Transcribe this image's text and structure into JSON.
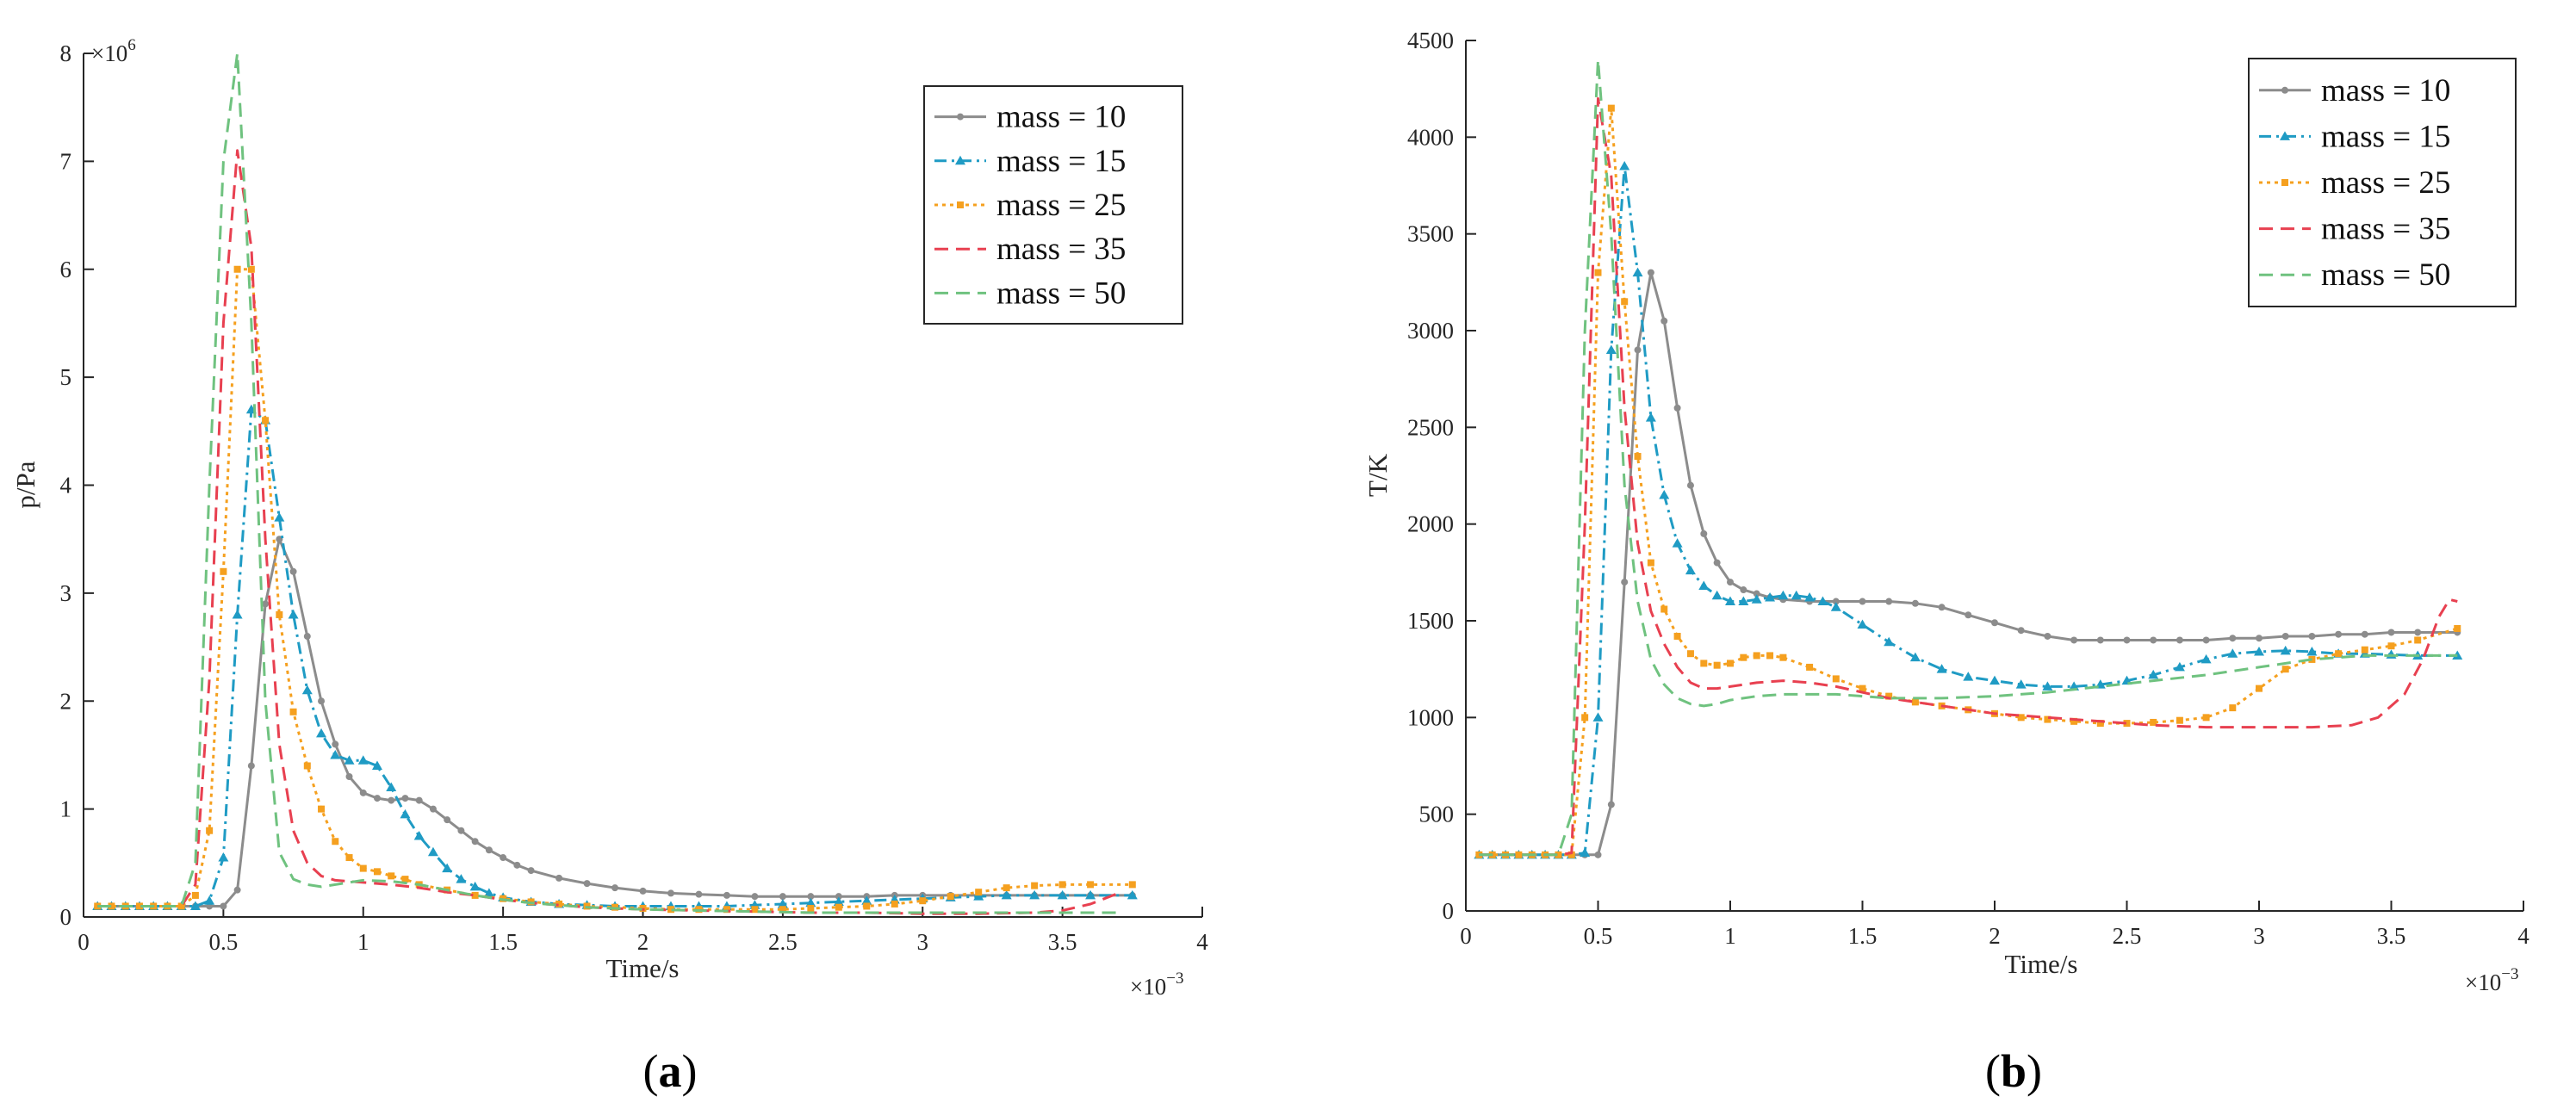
{
  "chart_data": [
    {
      "type": "line",
      "panel_label": {
        "open": "(",
        "letter": "a",
        "close": ")"
      },
      "title": "",
      "xlabel": "Time/s",
      "ylabel": "p/Pa",
      "x_multiplier": {
        "base": "×10",
        "exp": "−3"
      },
      "y_multiplier": {
        "base": "×10",
        "exp": "6"
      },
      "xlim": [
        0,
        4
      ],
      "ylim": [
        0,
        8
      ],
      "x_ticks": [
        "0",
        "0.5",
        "1",
        "1.5",
        "2",
        "2.5",
        "3",
        "3.5",
        "4"
      ],
      "y_ticks": [
        "0",
        "1",
        "2",
        "3",
        "4",
        "5",
        "6",
        "7",
        "8"
      ],
      "legend_position": "top-right",
      "series": [
        {
          "name": "mass = 10",
          "color": "#8c8c8c",
          "dash": "solid",
          "marker": "circle",
          "x": [
            0.05,
            0.1,
            0.15,
            0.2,
            0.25,
            0.3,
            0.35,
            0.4,
            0.45,
            0.5,
            0.55,
            0.6,
            0.65,
            0.7,
            0.75,
            0.8,
            0.85,
            0.9,
            0.95,
            1.0,
            1.05,
            1.1,
            1.15,
            1.2,
            1.25,
            1.3,
            1.35,
            1.4,
            1.45,
            1.5,
            1.55,
            1.6,
            1.7,
            1.8,
            1.9,
            2.0,
            2.1,
            2.2,
            2.3,
            2.4,
            2.5,
            2.6,
            2.7,
            2.8,
            2.9,
            3.0,
            3.1,
            3.2,
            3.3,
            3.4,
            3.5,
            3.6,
            3.75
          ],
          "y": [
            0.1,
            0.1,
            0.1,
            0.1,
            0.1,
            0.1,
            0.1,
            0.1,
            0.1,
            0.1,
            0.25,
            1.4,
            2.9,
            3.5,
            3.2,
            2.6,
            2.0,
            1.6,
            1.3,
            1.15,
            1.1,
            1.08,
            1.1,
            1.08,
            1.0,
            0.9,
            0.8,
            0.7,
            0.62,
            0.55,
            0.48,
            0.43,
            0.36,
            0.31,
            0.27,
            0.24,
            0.22,
            0.21,
            0.2,
            0.19,
            0.19,
            0.19,
            0.19,
            0.19,
            0.2,
            0.2,
            0.2,
            0.2,
            0.2,
            0.2,
            0.2,
            0.2,
            0.2
          ]
        },
        {
          "name": "mass = 15",
          "color": "#1f9bc4",
          "dash": "dashdot",
          "marker": "triangle",
          "x": [
            0.05,
            0.1,
            0.15,
            0.2,
            0.25,
            0.3,
            0.35,
            0.4,
            0.45,
            0.5,
            0.55,
            0.6,
            0.65,
            0.7,
            0.75,
            0.8,
            0.85,
            0.9,
            0.95,
            1.0,
            1.05,
            1.1,
            1.15,
            1.2,
            1.25,
            1.3,
            1.35,
            1.4,
            1.45,
            1.5,
            1.6,
            1.7,
            1.8,
            1.9,
            2.0,
            2.1,
            2.2,
            2.3,
            2.4,
            2.5,
            2.6,
            2.7,
            2.8,
            2.9,
            3.0,
            3.1,
            3.2,
            3.3,
            3.4,
            3.5,
            3.6,
            3.75
          ],
          "y": [
            0.1,
            0.1,
            0.1,
            0.1,
            0.1,
            0.1,
            0.1,
            0.1,
            0.15,
            0.55,
            2.8,
            4.7,
            4.6,
            3.7,
            2.8,
            2.1,
            1.7,
            1.5,
            1.45,
            1.45,
            1.4,
            1.2,
            0.95,
            0.75,
            0.6,
            0.45,
            0.35,
            0.28,
            0.22,
            0.18,
            0.14,
            0.12,
            0.11,
            0.1,
            0.1,
            0.1,
            0.1,
            0.1,
            0.11,
            0.12,
            0.13,
            0.14,
            0.15,
            0.16,
            0.17,
            0.18,
            0.19,
            0.2,
            0.2,
            0.2,
            0.2,
            0.2
          ]
        },
        {
          "name": "mass = 25",
          "color": "#f5a01f",
          "dash": "dotted",
          "marker": "square",
          "x": [
            0.05,
            0.1,
            0.15,
            0.2,
            0.25,
            0.3,
            0.35,
            0.4,
            0.45,
            0.5,
            0.55,
            0.6,
            0.65,
            0.7,
            0.75,
            0.8,
            0.85,
            0.9,
            0.95,
            1.0,
            1.05,
            1.1,
            1.15,
            1.2,
            1.3,
            1.4,
            1.5,
            1.6,
            1.7,
            1.8,
            1.9,
            2.0,
            2.1,
            2.2,
            2.3,
            2.4,
            2.5,
            2.6,
            2.7,
            2.8,
            2.9,
            3.0,
            3.1,
            3.2,
            3.3,
            3.4,
            3.5,
            3.6,
            3.75
          ],
          "y": [
            0.1,
            0.1,
            0.1,
            0.1,
            0.1,
            0.1,
            0.1,
            0.2,
            0.8,
            3.2,
            6.0,
            6.0,
            4.6,
            2.8,
            1.9,
            1.4,
            1.0,
            0.7,
            0.55,
            0.45,
            0.42,
            0.38,
            0.35,
            0.3,
            0.25,
            0.2,
            0.17,
            0.14,
            0.12,
            0.1,
            0.09,
            0.08,
            0.07,
            0.07,
            0.07,
            0.07,
            0.07,
            0.08,
            0.09,
            0.1,
            0.12,
            0.15,
            0.19,
            0.23,
            0.27,
            0.29,
            0.3,
            0.3,
            0.3
          ]
        },
        {
          "name": "mass = 35",
          "color": "#e84050",
          "dash": "dashed",
          "marker": "none",
          "x": [
            0.05,
            0.1,
            0.15,
            0.2,
            0.25,
            0.3,
            0.35,
            0.4,
            0.45,
            0.5,
            0.55,
            0.6,
            0.65,
            0.7,
            0.75,
            0.8,
            0.85,
            0.9,
            0.95,
            1.0,
            1.1,
            1.2,
            1.3,
            1.4,
            1.5,
            1.6,
            1.7,
            1.8,
            1.9,
            2.0,
            2.2,
            2.4,
            2.6,
            2.8,
            3.0,
            3.2,
            3.4,
            3.5,
            3.6,
            3.7
          ],
          "y": [
            0.1,
            0.1,
            0.1,
            0.1,
            0.1,
            0.1,
            0.1,
            0.3,
            2.2,
            5.5,
            7.1,
            6.2,
            3.5,
            1.6,
            0.8,
            0.5,
            0.38,
            0.34,
            0.33,
            0.32,
            0.3,
            0.27,
            0.23,
            0.2,
            0.16,
            0.13,
            0.11,
            0.09,
            0.08,
            0.07,
            0.06,
            0.05,
            0.04,
            0.04,
            0.03,
            0.03,
            0.04,
            0.06,
            0.12,
            0.22
          ]
        },
        {
          "name": "mass = 50",
          "color": "#6fc27f",
          "dash": "dashed",
          "marker": "none",
          "x": [
            0.05,
            0.1,
            0.15,
            0.2,
            0.25,
            0.3,
            0.35,
            0.4,
            0.45,
            0.5,
            0.55,
            0.6,
            0.65,
            0.7,
            0.75,
            0.8,
            0.85,
            0.9,
            0.95,
            1.0,
            1.1,
            1.2,
            1.3,
            1.4,
            1.5,
            1.6,
            1.7,
            1.8,
            1.9,
            2.0,
            2.2,
            2.4,
            2.6,
            2.8,
            3.0,
            3.2,
            3.4,
            3.5,
            3.6,
            3.7
          ],
          "y": [
            0.1,
            0.1,
            0.1,
            0.1,
            0.1,
            0.1,
            0.1,
            0.5,
            4.0,
            7.0,
            8.0,
            5.5,
            2.0,
            0.6,
            0.35,
            0.3,
            0.28,
            0.3,
            0.32,
            0.34,
            0.33,
            0.3,
            0.25,
            0.2,
            0.16,
            0.13,
            0.11,
            0.09,
            0.08,
            0.07,
            0.06,
            0.05,
            0.04,
            0.04,
            0.04,
            0.04,
            0.04,
            0.04,
            0.04,
            0.04
          ]
        }
      ]
    },
    {
      "type": "line",
      "panel_label": {
        "open": "(",
        "letter": "b",
        "close": ")"
      },
      "title": "",
      "xlabel": "Time/s",
      "ylabel": "T/K",
      "x_multiplier": {
        "base": "×10",
        "exp": "−3"
      },
      "y_multiplier": null,
      "xlim": [
        0,
        4
      ],
      "ylim": [
        0,
        4500
      ],
      "x_ticks": [
        "0",
        "0.5",
        "1",
        "1.5",
        "2",
        "2.5",
        "3",
        "3.5",
        "4"
      ],
      "y_ticks": [
        "0",
        "500",
        "1000",
        "1500",
        "2000",
        "2500",
        "3000",
        "3500",
        "4000",
        "4500"
      ],
      "legend_position": "top-right",
      "series": [
        {
          "name": "mass = 10",
          "color": "#8c8c8c",
          "dash": "solid",
          "marker": "circle",
          "x": [
            0.05,
            0.1,
            0.15,
            0.2,
            0.25,
            0.3,
            0.35,
            0.4,
            0.45,
            0.5,
            0.55,
            0.6,
            0.65,
            0.7,
            0.75,
            0.8,
            0.85,
            0.9,
            0.95,
            1.0,
            1.05,
            1.1,
            1.15,
            1.2,
            1.3,
            1.4,
            1.5,
            1.6,
            1.7,
            1.8,
            1.9,
            2.0,
            2.1,
            2.2,
            2.3,
            2.4,
            2.5,
            2.6,
            2.7,
            2.8,
            2.9,
            3.0,
            3.1,
            3.2,
            3.3,
            3.4,
            3.5,
            3.6,
            3.75
          ],
          "y": [
            290,
            290,
            290,
            290,
            290,
            290,
            290,
            290,
            290,
            290,
            550,
            1700,
            2900,
            3300,
            3050,
            2600,
            2200,
            1950,
            1800,
            1700,
            1660,
            1640,
            1620,
            1610,
            1600,
            1600,
            1600,
            1600,
            1590,
            1570,
            1530,
            1490,
            1450,
            1420,
            1400,
            1400,
            1400,
            1400,
            1400,
            1400,
            1410,
            1410,
            1420,
            1420,
            1430,
            1430,
            1440,
            1440,
            1440
          ]
        },
        {
          "name": "mass = 15",
          "color": "#1f9bc4",
          "dash": "dashdot",
          "marker": "triangle",
          "x": [
            0.05,
            0.1,
            0.15,
            0.2,
            0.25,
            0.3,
            0.35,
            0.4,
            0.45,
            0.5,
            0.55,
            0.6,
            0.65,
            0.7,
            0.75,
            0.8,
            0.85,
            0.9,
            0.95,
            1.0,
            1.05,
            1.1,
            1.15,
            1.2,
            1.25,
            1.3,
            1.35,
            1.4,
            1.5,
            1.6,
            1.7,
            1.8,
            1.9,
            2.0,
            2.1,
            2.2,
            2.3,
            2.4,
            2.5,
            2.6,
            2.7,
            2.8,
            2.9,
            3.0,
            3.1,
            3.2,
            3.3,
            3.4,
            3.5,
            3.6,
            3.75
          ],
          "y": [
            290,
            290,
            290,
            290,
            290,
            290,
            290,
            290,
            300,
            1000,
            2900,
            3850,
            3300,
            2550,
            2150,
            1900,
            1760,
            1680,
            1630,
            1600,
            1600,
            1610,
            1620,
            1630,
            1630,
            1620,
            1600,
            1570,
            1480,
            1390,
            1310,
            1250,
            1210,
            1190,
            1170,
            1160,
            1160,
            1170,
            1190,
            1220,
            1260,
            1300,
            1330,
            1340,
            1345,
            1340,
            1330,
            1330,
            1325,
            1320,
            1320
          ]
        },
        {
          "name": "mass = 25",
          "color": "#f5a01f",
          "dash": "dotted",
          "marker": "square",
          "x": [
            0.05,
            0.1,
            0.15,
            0.2,
            0.25,
            0.3,
            0.35,
            0.4,
            0.45,
            0.5,
            0.55,
            0.6,
            0.65,
            0.7,
            0.75,
            0.8,
            0.85,
            0.9,
            0.95,
            1.0,
            1.05,
            1.1,
            1.15,
            1.2,
            1.3,
            1.4,
            1.5,
            1.6,
            1.7,
            1.8,
            1.9,
            2.0,
            2.1,
            2.2,
            2.3,
            2.4,
            2.5,
            2.6,
            2.7,
            2.8,
            2.9,
            3.0,
            3.1,
            3.2,
            3.3,
            3.4,
            3.5,
            3.6,
            3.75
          ],
          "y": [
            290,
            290,
            290,
            290,
            290,
            290,
            290,
            290,
            1000,
            3300,
            4150,
            3150,
            2350,
            1800,
            1560,
            1420,
            1330,
            1280,
            1270,
            1280,
            1310,
            1320,
            1320,
            1310,
            1260,
            1200,
            1150,
            1110,
            1080,
            1060,
            1040,
            1020,
            1000,
            990,
            980,
            970,
            970,
            975,
            985,
            1000,
            1050,
            1150,
            1250,
            1300,
            1330,
            1350,
            1370,
            1400,
            1460
          ]
        },
        {
          "name": "mass = 35",
          "color": "#e84050",
          "dash": "dashed",
          "marker": "none",
          "x": [
            0.05,
            0.1,
            0.15,
            0.2,
            0.25,
            0.3,
            0.35,
            0.4,
            0.45,
            0.5,
            0.55,
            0.6,
            0.65,
            0.7,
            0.75,
            0.8,
            0.85,
            0.9,
            0.95,
            1.0,
            1.1,
            1.2,
            1.3,
            1.4,
            1.5,
            1.6,
            1.7,
            1.8,
            1.9,
            2.0,
            2.2,
            2.4,
            2.6,
            2.8,
            3.0,
            3.2,
            3.35,
            3.45,
            3.55,
            3.62,
            3.68,
            3.72,
            3.75
          ],
          "y": [
            290,
            290,
            290,
            290,
            290,
            290,
            290,
            300,
            2000,
            4200,
            3800,
            2600,
            1900,
            1550,
            1380,
            1260,
            1180,
            1150,
            1150,
            1160,
            1180,
            1190,
            1180,
            1160,
            1130,
            1100,
            1080,
            1060,
            1040,
            1020,
            1000,
            980,
            960,
            950,
            950,
            950,
            960,
            1000,
            1120,
            1300,
            1520,
            1610,
            1600
          ]
        },
        {
          "name": "mass = 50",
          "color": "#6fc27f",
          "dash": "dashed",
          "marker": "none",
          "x": [
            0.05,
            0.1,
            0.15,
            0.2,
            0.25,
            0.3,
            0.35,
            0.4,
            0.45,
            0.5,
            0.55,
            0.6,
            0.65,
            0.7,
            0.75,
            0.8,
            0.85,
            0.9,
            0.95,
            1.0,
            1.1,
            1.2,
            1.3,
            1.4,
            1.5,
            1.6,
            1.8,
            2.0,
            2.2,
            2.4,
            2.6,
            2.8,
            3.0,
            3.2,
            3.4,
            3.6,
            3.75
          ],
          "y": [
            290,
            290,
            290,
            290,
            290,
            290,
            290,
            500,
            3000,
            4400,
            3500,
            2200,
            1600,
            1300,
            1170,
            1100,
            1070,
            1060,
            1070,
            1090,
            1110,
            1120,
            1120,
            1120,
            1110,
            1100,
            1100,
            1110,
            1130,
            1160,
            1190,
            1220,
            1260,
            1300,
            1320,
            1320,
            1320
          ]
        }
      ]
    }
  ]
}
